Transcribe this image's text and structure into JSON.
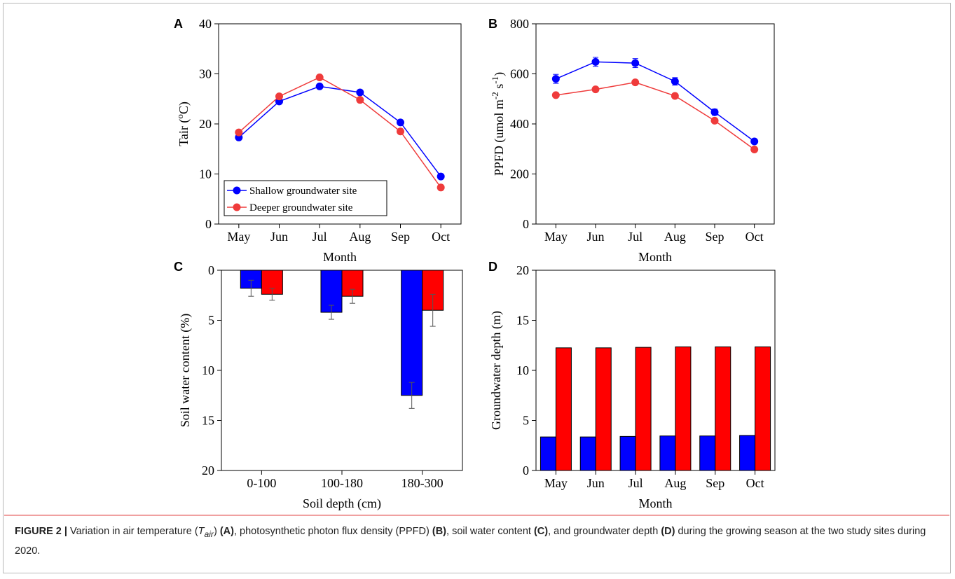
{
  "colors": {
    "shallow": "#0000ff",
    "deeper": "#ef3b3b",
    "deeper_bar": "#ff0000",
    "caption_rule": "#e04040"
  },
  "chart_data": [
    {
      "panel": "A",
      "type": "line",
      "categories": [
        "May",
        "Jun",
        "Jul",
        "Aug",
        "Sep",
        "Oct"
      ],
      "xlabel": "Month",
      "ylabel": "Tair (ºC)",
      "ylim": [
        0,
        40
      ],
      "yticks": [
        0,
        10,
        20,
        30,
        40
      ],
      "series": [
        {
          "name": "Shallow groundwater site",
          "color": "#0000ff",
          "values": [
            17.3,
            24.5,
            27.5,
            26.3,
            20.3,
            9.5
          ],
          "errors": [
            0.4,
            0.4,
            0.4,
            0.4,
            0.4,
            0.4
          ]
        },
        {
          "name": "Deeper groundwater site",
          "color": "#ef3b3b",
          "values": [
            18.3,
            25.5,
            29.3,
            24.8,
            18.5,
            7.3
          ],
          "errors": [
            0.4,
            0.4,
            0.4,
            0.4,
            0.4,
            0.4
          ]
        }
      ],
      "legend": "bottom-left"
    },
    {
      "panel": "B",
      "type": "line",
      "categories": [
        "May",
        "Jun",
        "Jul",
        "Aug",
        "Sep",
        "Oct"
      ],
      "xlabel": "Month",
      "ylabel": "PPFD (umol m-2 s-1)",
      "ylim": [
        0,
        800
      ],
      "yticks": [
        0,
        200,
        400,
        600,
        800
      ],
      "series": [
        {
          "name": "Shallow groundwater site",
          "color": "#0000ff",
          "values": [
            580,
            648,
            643,
            570,
            447,
            330
          ],
          "errors": [
            18,
            18,
            18,
            15,
            12,
            8
          ]
        },
        {
          "name": "Deeper groundwater site",
          "color": "#ef3b3b",
          "values": [
            515,
            538,
            566,
            512,
            413,
            298
          ],
          "errors": [
            8,
            8,
            8,
            8,
            8,
            8
          ]
        }
      ]
    },
    {
      "panel": "C",
      "type": "bar",
      "categories": [
        "0-100",
        "100-180",
        "180-300"
      ],
      "xlabel": "Soil depth (cm)",
      "ylabel": "Soil water content (%)",
      "ylim": [
        0,
        20
      ],
      "yticks": [
        0,
        5,
        10,
        15,
        20
      ],
      "inverted_y": true,
      "series": [
        {
          "name": "Shallow groundwater site",
          "color": "#0000ff",
          "values": [
            1.8,
            4.2,
            12.5
          ],
          "errors": [
            0.8,
            0.7,
            1.3
          ]
        },
        {
          "name": "Deeper groundwater site",
          "color": "#ff0000",
          "values": [
            2.4,
            2.6,
            4.0
          ],
          "errors": [
            0.6,
            0.7,
            1.6
          ]
        }
      ]
    },
    {
      "panel": "D",
      "type": "bar",
      "categories": [
        "May",
        "Jun",
        "Jul",
        "Aug",
        "Sep",
        "Oct"
      ],
      "xlabel": "Month",
      "ylabel": "Groundwater depth (m)",
      "ylim": [
        0,
        20
      ],
      "yticks": [
        0,
        5,
        10,
        15,
        20
      ],
      "series": [
        {
          "name": "Shallow groundwater site",
          "color": "#0000ff",
          "values": [
            3.35,
            3.35,
            3.4,
            3.45,
            3.45,
            3.5
          ]
        },
        {
          "name": "Deeper groundwater site",
          "color": "#ff0000",
          "values": [
            12.25,
            12.25,
            12.3,
            12.35,
            12.35,
            12.35
          ]
        }
      ]
    }
  ],
  "caption": {
    "label": "FIGURE 2 |",
    "t1": " Variation in air temperature (",
    "tair_T": "T",
    "tair_sub": "air",
    "t2": ") ",
    "refA": "(A)",
    "t3": ", photosynthetic photon flux density (PPFD) ",
    "refB": "(B)",
    "t4": ", soil water content ",
    "refC": "(C)",
    "t5": ", and groundwater depth ",
    "refD": "(D)",
    "t6": " during the growing season at the two study sites during 2020."
  }
}
